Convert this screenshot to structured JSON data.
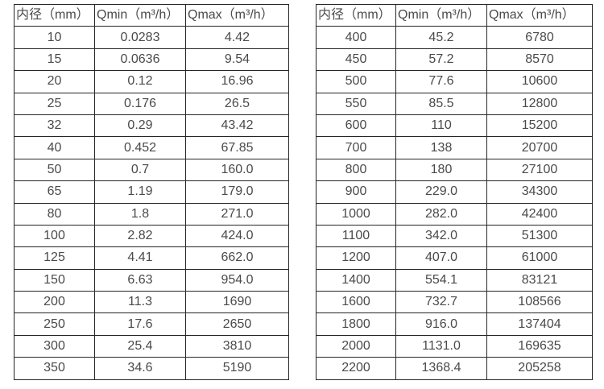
{
  "colors": {
    "background": "#ffffff",
    "text": "#4a4a4a",
    "border": "#262626"
  },
  "chart_data": [
    {
      "type": "table",
      "columns": [
        "内径（mm）",
        "Qmin（m³/h）",
        "Qmax（m³/h）"
      ],
      "rows": [
        [
          "10",
          "0.0283",
          "4.42"
        ],
        [
          "15",
          "0.0636",
          "9.54"
        ],
        [
          "20",
          "0.12",
          "16.96"
        ],
        [
          "25",
          "0.176",
          "26.5"
        ],
        [
          "32",
          "0.29",
          "43.42"
        ],
        [
          "40",
          "0.452",
          "67.85"
        ],
        [
          "50",
          "0.7",
          "160.0"
        ],
        [
          "65",
          "1.19",
          "179.0"
        ],
        [
          "80",
          "1.8",
          "271.0"
        ],
        [
          "100",
          "2.82",
          "424.0"
        ],
        [
          "125",
          "4.41",
          "662.0"
        ],
        [
          "150",
          "6.63",
          "954.0"
        ],
        [
          "200",
          "11.3",
          "1690"
        ],
        [
          "250",
          "17.6",
          "2650"
        ],
        [
          "300",
          "25.4",
          "3810"
        ],
        [
          "350",
          "34.6",
          "5190"
        ]
      ]
    },
    {
      "type": "table",
      "columns": [
        "内径（mm）",
        "Qmin（m³/h）",
        "Qmax（m³/h）"
      ],
      "rows": [
        [
          "400",
          "45.2",
          "6780"
        ],
        [
          "450",
          "57.2",
          "8570"
        ],
        [
          "500",
          "77.6",
          "10600"
        ],
        [
          "550",
          "85.5",
          "12800"
        ],
        [
          "600",
          "110",
          "15200"
        ],
        [
          "700",
          "138",
          "20700"
        ],
        [
          "800",
          "180",
          "27100"
        ],
        [
          "900",
          "229.0",
          "34300"
        ],
        [
          "1000",
          "282.0",
          "42400"
        ],
        [
          "1100",
          "342.0",
          "51300"
        ],
        [
          "1200",
          "407.0",
          "61000"
        ],
        [
          "1400",
          "554.1",
          "83121"
        ],
        [
          "1600",
          "732.7",
          "108566"
        ],
        [
          "1800",
          "916.0",
          "137404"
        ],
        [
          "2000",
          "1131.0",
          "169635"
        ],
        [
          "2200",
          "1368.4",
          "205258"
        ]
      ]
    }
  ]
}
